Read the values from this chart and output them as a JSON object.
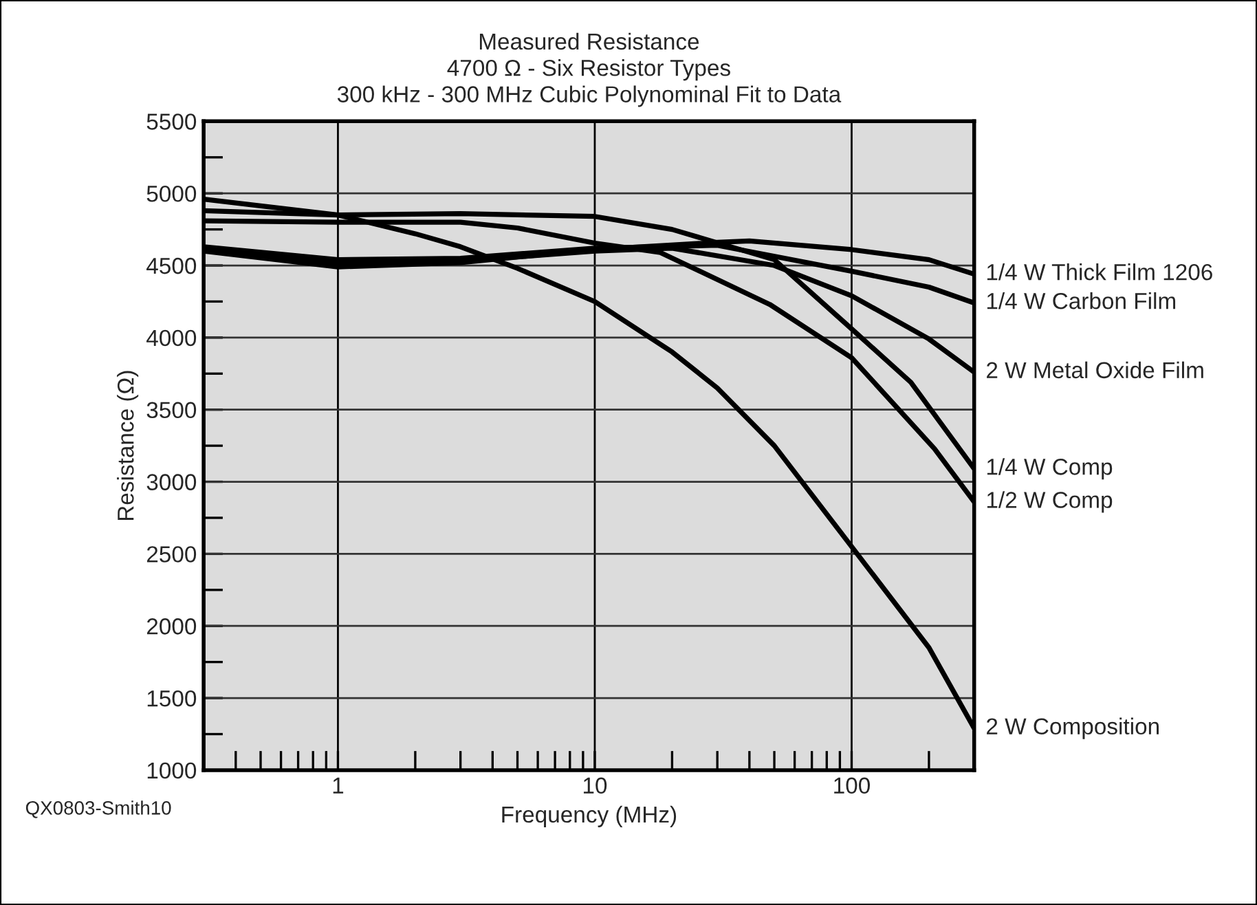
{
  "chart_data": {
    "type": "line",
    "title": "Measured Resistance\n4700 Ω - Six Resistor Types\n300 kHz - 300 MHz Cubic Polynominal Fit to Data",
    "xlabel": "Frequency (MHz)",
    "ylabel": "Resistance (Ω)",
    "log": "x",
    "xlim": [
      0.3,
      300
    ],
    "ylim": [
      1000,
      5500
    ],
    "xticks": [
      {
        "value": 0.3,
        "label": null
      },
      {
        "value": 0.4,
        "label": null
      },
      {
        "value": 0.5,
        "label": null
      },
      {
        "value": 0.6,
        "label": null
      },
      {
        "value": 0.7,
        "label": null
      },
      {
        "value": 0.8,
        "label": null
      },
      {
        "value": 0.9,
        "label": null
      },
      {
        "value": 1,
        "label": "1"
      },
      {
        "value": 2,
        "label": null
      },
      {
        "value": 3,
        "label": null
      },
      {
        "value": 4,
        "label": null
      },
      {
        "value": 5,
        "label": null
      },
      {
        "value": 6,
        "label": null
      },
      {
        "value": 7,
        "label": null
      },
      {
        "value": 8,
        "label": null
      },
      {
        "value": 9,
        "label": null
      },
      {
        "value": 10,
        "label": "10"
      },
      {
        "value": 20,
        "label": null
      },
      {
        "value": 30,
        "label": null
      },
      {
        "value": 40,
        "label": null
      },
      {
        "value": 50,
        "label": null
      },
      {
        "value": 60,
        "label": null
      },
      {
        "value": 70,
        "label": null
      },
      {
        "value": 80,
        "label": null
      },
      {
        "value": 90,
        "label": null
      },
      {
        "value": 100,
        "label": "100"
      },
      {
        "value": 200,
        "label": null
      },
      {
        "value": 300,
        "label": null
      }
    ],
    "yticks": [
      1000,
      {
        "value": 1250,
        "label": null
      },
      1500,
      {
        "value": 1750,
        "label": null
      },
      2000,
      {
        "value": 2250,
        "label": null
      },
      2500,
      {
        "value": 2750,
        "label": null
      },
      3000,
      {
        "value": 3250,
        "label": null
      },
      3500,
      {
        "value": 3750,
        "label": null
      },
      4000,
      {
        "value": 4250,
        "label": null
      },
      4500,
      {
        "value": 4750,
        "label": null
      },
      5000,
      {
        "value": 5250,
        "label": null
      },
      5500
    ],
    "grid": true,
    "legend": false,
    "marker": "none",
    "line_style": "solid",
    "annotations": [
      "QX0803-Smith10"
    ],
    "series": [
      {
        "name": "1/4 W Thick Film 1206",
        "color": "#000000",
        "x": [
          0.3,
          1,
          3,
          10,
          30,
          40,
          100,
          200,
          300
        ],
        "values": [
          4600,
          4490,
          4520,
          4610,
          4660,
          4670,
          4610,
          4540,
          4440
        ]
      },
      {
        "name": "1/4 W Carbon Film",
        "color": "#000000",
        "x": [
          0.3,
          1,
          3,
          10,
          30,
          100,
          200,
          300
        ],
        "values": [
          4630,
          4540,
          4550,
          4620,
          4640,
          4460,
          4350,
          4240
        ]
      },
      {
        "name": "2 W Metal Oxide Film",
        "color": "#000000",
        "x": [
          0.3,
          1,
          3,
          10,
          20,
          50,
          100,
          200,
          300
        ],
        "values": [
          4620,
          4520,
          4530,
          4600,
          4620,
          4500,
          4290,
          3990,
          3760
        ]
      },
      {
        "name": "1/4 W Comp",
        "color": "#000000",
        "x": [
          0.3,
          1,
          3,
          10,
          20,
          50,
          100,
          170,
          300
        ],
        "values": [
          4880,
          4850,
          4860,
          4840,
          4750,
          4540,
          4060,
          3690,
          3090
        ]
      },
      {
        "name": "1/2 W Comp",
        "color": "#000000",
        "x": [
          0.3,
          1,
          3,
          5,
          10,
          18,
          48,
          100,
          210,
          300
        ],
        "values": [
          4810,
          4800,
          4800,
          4760,
          4655,
          4590,
          4230,
          3860,
          3230,
          2860
        ]
      },
      {
        "name": "2 W Composition",
        "color": "#000000",
        "x": [
          0.3,
          1,
          2,
          3,
          5,
          10,
          20,
          30,
          50,
          100,
          200,
          300
        ],
        "values": [
          4960,
          4850,
          4720,
          4630,
          4480,
          4250,
          3900,
          3650,
          3250,
          2550,
          1850,
          1290
        ]
      }
    ]
  }
}
